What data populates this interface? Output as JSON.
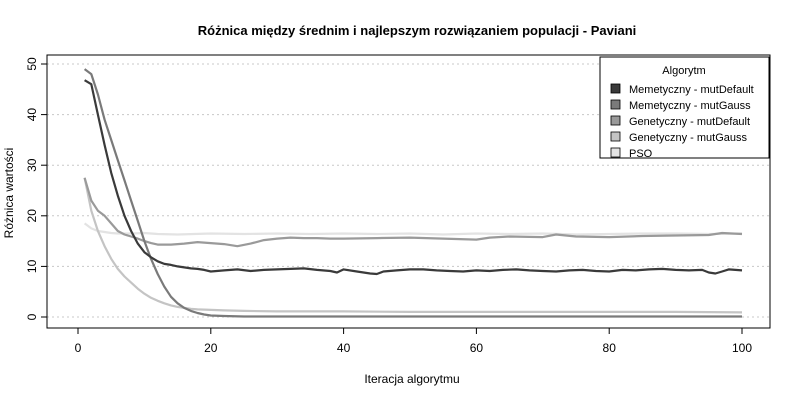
{
  "chart_data": {
    "type": "line",
    "title": "Różnica między średnim i najlepszym rozwiązaniem populacji - Paviani",
    "xlabel": "Iteracja algorytmu",
    "ylabel": "Różnica wartości",
    "xlim": [
      1,
      100
    ],
    "ylim": [
      0,
      50
    ],
    "xticks": [
      0,
      20,
      40,
      60,
      80,
      100
    ],
    "yticks": [
      0,
      10,
      20,
      30,
      40,
      50
    ],
    "grid": "horizontal dotted",
    "legend": {
      "title": "Algorytm",
      "placement": "top-right"
    },
    "series": [
      {
        "name": "Memetyczny - mutDefault",
        "color": "#3a3a3a",
        "points": [
          [
            1,
            46.8
          ],
          [
            2,
            46.0
          ],
          [
            3,
            40
          ],
          [
            4,
            34
          ],
          [
            5,
            28.5
          ],
          [
            6,
            24
          ],
          [
            7,
            20
          ],
          [
            8,
            17
          ],
          [
            9,
            14.5
          ],
          [
            10,
            12.8
          ],
          [
            11,
            11.8
          ],
          [
            12,
            11
          ],
          [
            13,
            10.5
          ],
          [
            14,
            10.3
          ],
          [
            15,
            10
          ],
          [
            16,
            9.8
          ],
          [
            17,
            9.6
          ],
          [
            18,
            9.5
          ],
          [
            19,
            9.3
          ],
          [
            20,
            9.0
          ],
          [
            22,
            9.2
          ],
          [
            24,
            9.4
          ],
          [
            26,
            9.1
          ],
          [
            28,
            9.3
          ],
          [
            30,
            9.4
          ],
          [
            32,
            9.5
          ],
          [
            34,
            9.6
          ],
          [
            36,
            9.3
          ],
          [
            38,
            9.1
          ],
          [
            39,
            8.8
          ],
          [
            40,
            9.4
          ],
          [
            42,
            9.0
          ],
          [
            44,
            8.6
          ],
          [
            45,
            8.5
          ],
          [
            46,
            9.0
          ],
          [
            48,
            9.2
          ],
          [
            50,
            9.4
          ],
          [
            52,
            9.4
          ],
          [
            54,
            9.2
          ],
          [
            56,
            9.1
          ],
          [
            58,
            9.0
          ],
          [
            60,
            9.2
          ],
          [
            62,
            9.1
          ],
          [
            64,
            9.3
          ],
          [
            66,
            9.4
          ],
          [
            68,
            9.2
          ],
          [
            70,
            9.1
          ],
          [
            72,
            9.0
          ],
          [
            74,
            9.2
          ],
          [
            76,
            9.3
          ],
          [
            78,
            9.1
          ],
          [
            80,
            9.0
          ],
          [
            82,
            9.3
          ],
          [
            84,
            9.2
          ],
          [
            86,
            9.4
          ],
          [
            88,
            9.5
          ],
          [
            90,
            9.3
          ],
          [
            92,
            9.2
          ],
          [
            94,
            9.3
          ],
          [
            95,
            8.8
          ],
          [
            96,
            8.6
          ],
          [
            97,
            9.0
          ],
          [
            98,
            9.4
          ],
          [
            99,
            9.3
          ],
          [
            100,
            9.2
          ]
        ]
      },
      {
        "name": "Memetyczny - mutGauss",
        "color": "#7a7a7a",
        "points": [
          [
            1,
            49
          ],
          [
            2,
            48
          ],
          [
            3,
            44
          ],
          [
            4,
            39
          ],
          [
            5,
            35
          ],
          [
            6,
            31
          ],
          [
            7,
            27
          ],
          [
            8,
            23
          ],
          [
            9,
            19
          ],
          [
            10,
            15
          ],
          [
            11,
            11.5
          ],
          [
            12,
            8.5
          ],
          [
            13,
            6
          ],
          [
            14,
            4
          ],
          [
            15,
            2.7
          ],
          [
            16,
            1.8
          ],
          [
            17,
            1.2
          ],
          [
            18,
            0.8
          ],
          [
            19,
            0.5
          ],
          [
            20,
            0.3
          ],
          [
            22,
            0.2
          ],
          [
            25,
            0.1
          ],
          [
            30,
            0.1
          ],
          [
            40,
            0.1
          ],
          [
            50,
            0.1
          ],
          [
            60,
            0.1
          ],
          [
            70,
            0.1
          ],
          [
            80,
            0.1
          ],
          [
            90,
            0.1
          ],
          [
            100,
            0.1
          ]
        ]
      },
      {
        "name": "Genetyczny - mutDefault",
        "color": "#9a9a9a",
        "points": [
          [
            1,
            27.5
          ],
          [
            2,
            23
          ],
          [
            3,
            21
          ],
          [
            4,
            20
          ],
          [
            5,
            18.5
          ],
          [
            6,
            17
          ],
          [
            7,
            16.3
          ],
          [
            8,
            15.9
          ],
          [
            9,
            15.5
          ],
          [
            10,
            15.0
          ],
          [
            11,
            14.6
          ],
          [
            12,
            14.3
          ],
          [
            14,
            14.3
          ],
          [
            16,
            14.5
          ],
          [
            18,
            14.8
          ],
          [
            20,
            14.6
          ],
          [
            22,
            14.4
          ],
          [
            24,
            14.0
          ],
          [
            26,
            14.5
          ],
          [
            28,
            15.2
          ],
          [
            30,
            15.5
          ],
          [
            32,
            15.7
          ],
          [
            34,
            15.6
          ],
          [
            36,
            15.6
          ],
          [
            38,
            15.5
          ],
          [
            40,
            15.5
          ],
          [
            45,
            15.6
          ],
          [
            50,
            15.7
          ],
          [
            55,
            15.5
          ],
          [
            60,
            15.3
          ],
          [
            62,
            15.7
          ],
          [
            65,
            15.9
          ],
          [
            70,
            15.8
          ],
          [
            72,
            16.3
          ],
          [
            75,
            15.9
          ],
          [
            80,
            15.8
          ],
          [
            85,
            16.0
          ],
          [
            90,
            16.1
          ],
          [
            95,
            16.2
          ],
          [
            97,
            16.6
          ],
          [
            100,
            16.4
          ]
        ]
      },
      {
        "name": "Genetyczny - mutGauss",
        "color": "#c4c4c4",
        "points": [
          [
            1,
            27.5
          ],
          [
            2,
            21
          ],
          [
            3,
            17
          ],
          [
            4,
            14
          ],
          [
            5,
            11.5
          ],
          [
            6,
            9.5
          ],
          [
            7,
            8
          ],
          [
            8,
            6.8
          ],
          [
            9,
            5.6
          ],
          [
            10,
            4.6
          ],
          [
            11,
            3.8
          ],
          [
            12,
            3.2
          ],
          [
            13,
            2.7
          ],
          [
            14,
            2.3
          ],
          [
            15,
            2.0
          ],
          [
            16,
            1.8
          ],
          [
            17,
            1.6
          ],
          [
            18,
            1.5
          ],
          [
            20,
            1.4
          ],
          [
            22,
            1.3
          ],
          [
            25,
            1.2
          ],
          [
            30,
            1.1
          ],
          [
            40,
            1.1
          ],
          [
            50,
            1.0
          ],
          [
            60,
            1.0
          ],
          [
            70,
            1.0
          ],
          [
            80,
            1.0
          ],
          [
            90,
            1.0
          ],
          [
            100,
            0.9
          ]
        ]
      },
      {
        "name": "PSO",
        "color": "#e3e3e3",
        "points": [
          [
            1,
            18.5
          ],
          [
            2,
            17.5
          ],
          [
            3,
            17
          ],
          [
            4,
            16.8
          ],
          [
            5,
            16.6
          ],
          [
            6,
            16.5
          ],
          [
            8,
            16.5
          ],
          [
            10,
            16.6
          ],
          [
            12,
            16.4
          ],
          [
            15,
            16.3
          ],
          [
            20,
            16.5
          ],
          [
            25,
            16.4
          ],
          [
            30,
            16.5
          ],
          [
            35,
            16.4
          ],
          [
            40,
            16.5
          ],
          [
            45,
            16.4
          ],
          [
            50,
            16.5
          ],
          [
            55,
            16.3
          ],
          [
            60,
            16.5
          ],
          [
            65,
            16.4
          ],
          [
            70,
            16.5
          ],
          [
            75,
            16.3
          ],
          [
            80,
            16.4
          ],
          [
            85,
            16.5
          ],
          [
            90,
            16.5
          ],
          [
            95,
            16.4
          ],
          [
            100,
            16.5
          ]
        ]
      }
    ]
  }
}
